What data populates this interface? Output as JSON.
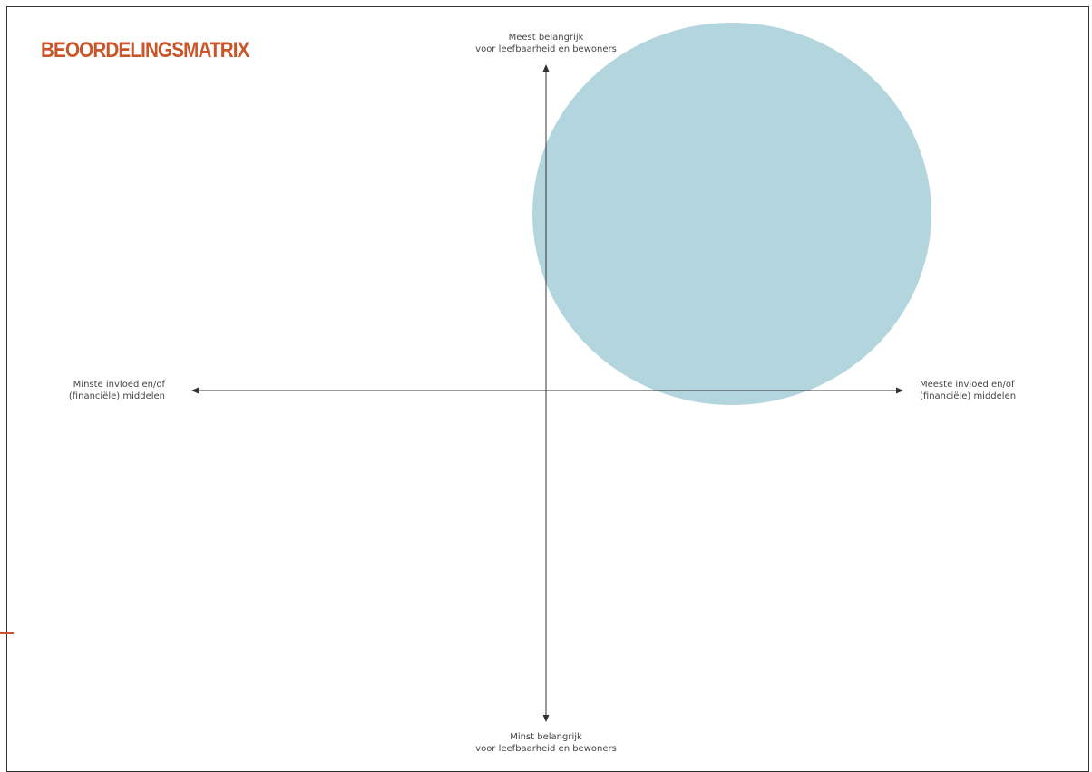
{
  "title": "BEOORDELINGSMATRIX",
  "colors": {
    "title": "#c9562a",
    "bubble": "#b3d5de",
    "axis": "#333333",
    "frame": "#333333"
  },
  "axes": {
    "top": [
      "Meest belangrijk",
      "voor leefbaarheid en bewoners"
    ],
    "bottom": [
      "Minst belangrijk",
      "voor leefbaarheid en bewoners"
    ],
    "left": [
      "Minste invloed en/of",
      "(financiële) middelen"
    ],
    "right": [
      "Meeste invloed en/of",
      "(financiële) middelen"
    ]
  }
}
